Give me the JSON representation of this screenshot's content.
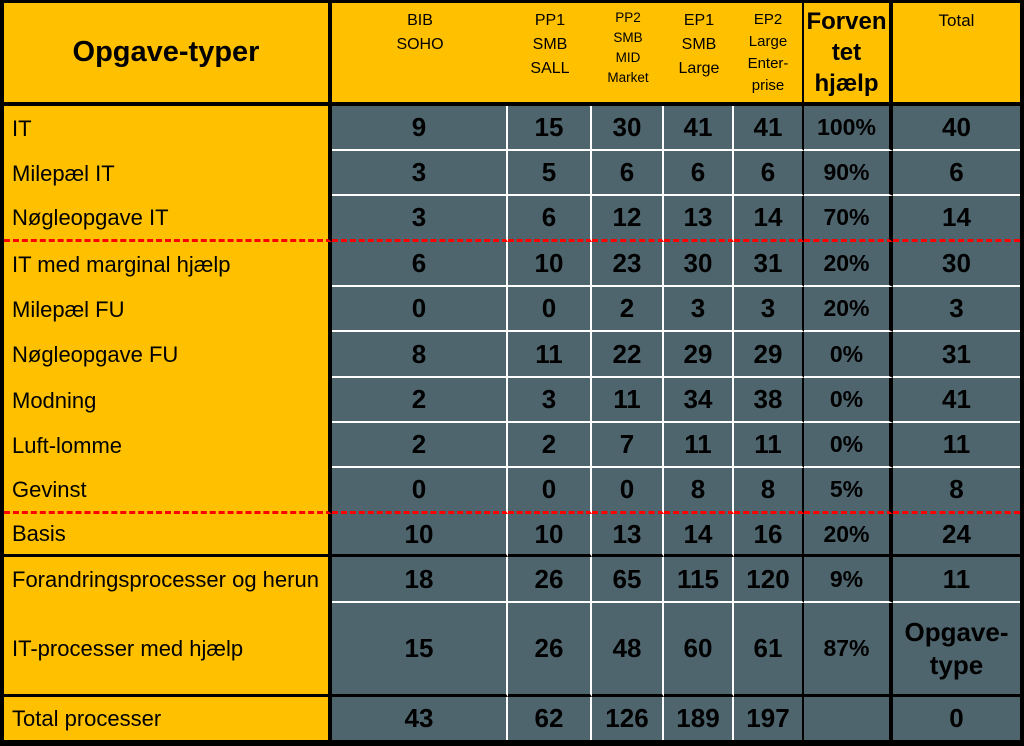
{
  "table": {
    "corner_title": "Opgave-typer",
    "columns": [
      {
        "title": "BIB\nSOHO"
      },
      {
        "title": "PP1\nSMB\nSALL"
      },
      {
        "title": "PP2\nSMB\nMID\nMarket"
      },
      {
        "title": "EP1\nSMB\nLarge"
      },
      {
        "title": "EP2\nLarge\nEnter-\nprise"
      },
      {
        "title": "Forven\ntet\nhjælp"
      },
      {
        "title": "Total"
      }
    ],
    "rows": [
      {
        "label": "IT",
        "cells": [
          "9",
          "15",
          "30",
          "41",
          "41",
          "100%",
          "40"
        ]
      },
      {
        "label": "Milepæl IT",
        "cells": [
          "3",
          "5",
          "6",
          "6",
          "6",
          "90%",
          "6"
        ]
      },
      {
        "label": "Nøgleopgave IT",
        "cells": [
          "3",
          "6",
          "12",
          "13",
          "14",
          "70%",
          "14"
        ]
      },
      {
        "label": "IT med marginal hjælp",
        "cells": [
          "6",
          "10",
          "23",
          "30",
          "31",
          "20%",
          "30"
        ]
      },
      {
        "label": "Milepæl FU",
        "cells": [
          "0",
          "0",
          "2",
          "3",
          "3",
          "20%",
          "3"
        ]
      },
      {
        "label": "Nøgleopgave FU",
        "cells": [
          "8",
          "11",
          "22",
          "29",
          "29",
          "0%",
          "31"
        ]
      },
      {
        "label": "Modning",
        "cells": [
          "2",
          "3",
          "11",
          "34",
          "38",
          "0%",
          "41"
        ]
      },
      {
        "label": "Luft-lomme",
        "cells": [
          "2",
          "2",
          "7",
          "11",
          "11",
          "0%",
          "11"
        ]
      },
      {
        "label": "Gevinst",
        "cells": [
          "0",
          "0",
          "0",
          "8",
          "8",
          "5%",
          "8"
        ]
      },
      {
        "label": "Basis",
        "cells": [
          "10",
          "10",
          "13",
          "14",
          "16",
          "20%",
          "24"
        ]
      },
      {
        "label": "Forandringsprocesser og herun",
        "cells": [
          "18",
          "26",
          "65",
          "115",
          "120",
          "9%",
          "11"
        ]
      },
      {
        "label": "IT-processer med hjælp",
        "cells": [
          "15",
          "26",
          "48",
          "60",
          "61",
          "87%",
          "Opgave-\ntype"
        ]
      },
      {
        "label": "Total processer",
        "cells": [
          "43",
          "62",
          "126",
          "189",
          "197",
          "",
          "0"
        ]
      }
    ]
  },
  "colors": {
    "gold": "#FFC000",
    "light-gold": "#FFD966",
    "slate": "#4E656E",
    "grid-white": "#FFFFFF",
    "divider-red": "#FF0000",
    "line-black": "#000000"
  },
  "chart_data": {
    "type": "table",
    "title": "Opgave-typer",
    "columns": [
      "Opgave-typer",
      "BIB SOHO",
      "PP1 SMB SALL",
      "PP2 SMB MID Market",
      "EP1 SMB Large",
      "EP2 Large Enterprise",
      "Forventet hjælp",
      "Total"
    ],
    "rows": [
      [
        "IT",
        9,
        15,
        30,
        41,
        41,
        "100%",
        40
      ],
      [
        "Milepæl IT",
        3,
        5,
        6,
        6,
        6,
        "90%",
        6
      ],
      [
        "Nøgleopgave IT",
        3,
        6,
        12,
        13,
        14,
        "70%",
        14
      ],
      [
        "IT med marginal hjælp",
        6,
        10,
        23,
        30,
        31,
        "20%",
        30
      ],
      [
        "Milepæl FU",
        0,
        0,
        2,
        3,
        3,
        "20%",
        3
      ],
      [
        "Nøgleopgave FU",
        8,
        11,
        22,
        29,
        29,
        "0%",
        31
      ],
      [
        "Modning",
        2,
        3,
        11,
        34,
        38,
        "0%",
        41
      ],
      [
        "Luft-lomme",
        2,
        2,
        7,
        11,
        11,
        "0%",
        11
      ],
      [
        "Gevinst",
        0,
        0,
        0,
        8,
        8,
        "5%",
        8
      ],
      [
        "Basis",
        10,
        10,
        13,
        14,
        16,
        "20%",
        24
      ],
      [
        "Forandringsprocesser og herun",
        18,
        26,
        65,
        115,
        120,
        "9%",
        11
      ],
      [
        "IT-processer med hjælp",
        15,
        26,
        48,
        60,
        61,
        "87%",
        "Opgave-type"
      ],
      [
        "Total processer",
        43,
        62,
        126,
        189,
        197,
        "",
        0
      ]
    ],
    "layout_hints": {
      "red_dashed_dividers_below_rows": [
        "Nøgleopgave IT",
        "Gevinst"
      ],
      "black_dividers_below_rows": [
        "header",
        "Basis",
        "IT-processer med hjælp"
      ]
    }
  }
}
